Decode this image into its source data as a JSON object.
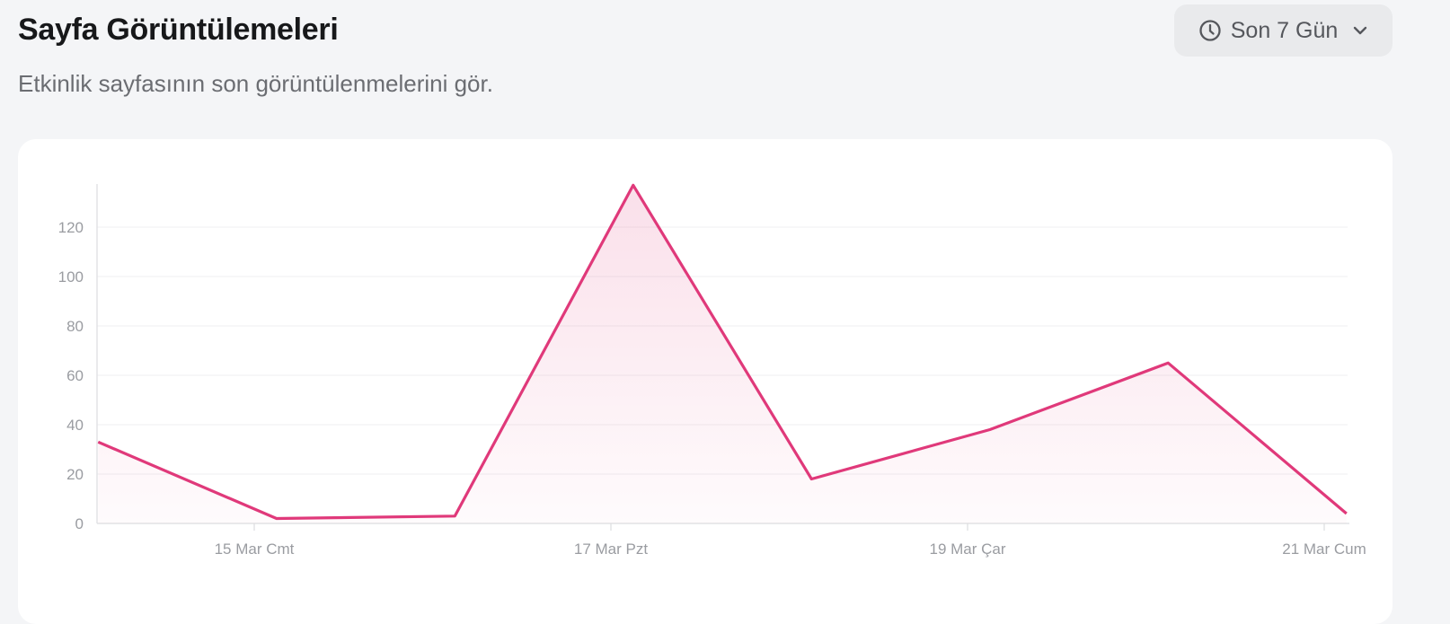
{
  "header": {
    "title": "Sayfa Görüntülemeleri",
    "subtitle": "Etkinlik sayfasının son görüntülenmelerini gör.",
    "range_selector": {
      "label": "Son 7 Gün",
      "icon": "clock-icon",
      "chevron": "chevron-down-icon"
    }
  },
  "chart_data": {
    "type": "area",
    "title": "",
    "xlabel": "",
    "ylabel": "",
    "ylim": [
      0,
      140
    ],
    "yticks": [
      0,
      20,
      40,
      60,
      80,
      100,
      120
    ],
    "xticks": [
      {
        "date": "15 Mar",
        "label": "15 Mar Cmt"
      },
      {
        "date": "17 Mar",
        "label": "17 Mar Pzt"
      },
      {
        "date": "19 Mar",
        "label": "19 Mar Çar"
      },
      {
        "date": "21 Mar",
        "label": "21 Mar Cum"
      }
    ],
    "grid": "horizontal",
    "color": "#e0397a",
    "series": [
      {
        "points": [
          {
            "x": "14 Mar 03:00",
            "y": 33
          },
          {
            "x": "15 Mar 03:00",
            "y": 2
          },
          {
            "x": "16 Mar 03:00",
            "y": 3
          },
          {
            "x": "17 Mar 03:00",
            "y": 137
          },
          {
            "x": "18 Mar 03:00",
            "y": 18
          },
          {
            "x": "19 Mar 03:00",
            "y": 38
          },
          {
            "x": "20 Mar 03:00",
            "y": 65
          },
          {
            "x": "21 Mar 03:00",
            "y": 4
          }
        ]
      }
    ]
  }
}
